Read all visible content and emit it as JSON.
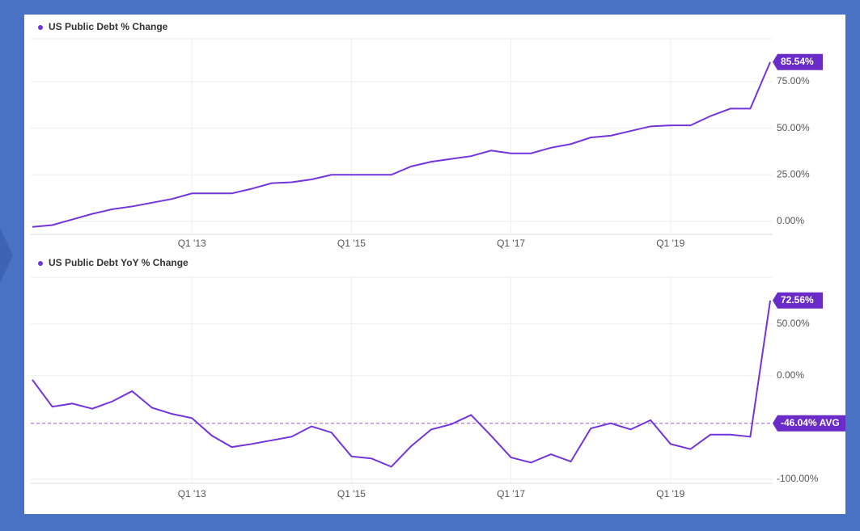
{
  "chart_data": [
    {
      "type": "line",
      "categories": [
        null,
        null,
        null,
        null,
        null,
        null,
        null,
        null,
        "Q1 '13",
        null,
        null,
        null,
        null,
        null,
        null,
        null,
        "Q1 '15",
        null,
        null,
        null,
        null,
        null,
        null,
        null,
        "Q1 '17",
        null,
        null,
        null,
        null,
        null,
        null,
        null,
        "Q1 '19",
        null,
        null,
        null,
        null,
        null
      ],
      "series": [
        {
          "name": "US Public Debt % Change",
          "color": "#7434dc",
          "values": [
            -3,
            -2,
            1,
            4,
            6.5,
            8,
            10,
            12,
            15,
            15,
            15,
            17.5,
            20.5,
            21,
            22.5,
            25,
            25,
            25,
            25,
            29.5,
            32,
            33.5,
            35,
            38,
            36.5,
            36.5,
            39.5,
            41.5,
            45,
            46,
            48.5,
            51,
            51.5,
            51.5,
            56.5,
            60.5,
            60.5,
            85.54
          ],
          "value_labels": [
            null,
            null,
            null,
            null,
            null,
            null,
            null,
            null,
            null,
            null,
            null,
            null,
            null,
            null,
            null,
            null,
            null,
            null,
            null,
            null,
            null,
            null,
            null,
            null,
            null,
            null,
            null,
            null,
            null,
            null,
            null,
            null,
            null,
            null,
            null,
            null,
            null,
            "85.54%"
          ]
        }
      ],
      "ylim": [
        -7,
        98
      ],
      "yticks": [
        {
          "value": 0,
          "label": "0.00%"
        },
        {
          "value": 25,
          "label": "25.00%"
        },
        {
          "value": 50,
          "label": "50.00%"
        },
        {
          "value": 75,
          "label": "75.00%"
        }
      ],
      "grid": true
    },
    {
      "type": "line",
      "categories": [
        null,
        null,
        null,
        null,
        null,
        null,
        null,
        null,
        "Q1 '13",
        null,
        null,
        null,
        null,
        null,
        null,
        null,
        "Q1 '15",
        null,
        null,
        null,
        null,
        null,
        null,
        null,
        "Q1 '17",
        null,
        null,
        null,
        null,
        null,
        null,
        null,
        "Q1 '19",
        null,
        null,
        null,
        null,
        null
      ],
      "series": [
        {
          "name": "US Public Debt YoY % Change",
          "color": "#7434dc",
          "values": [
            -4,
            -30,
            -27,
            -32,
            -25,
            -15,
            -31,
            -37,
            -41,
            -58,
            -69,
            -66,
            -62.5,
            -59,
            -49,
            -55,
            -78,
            -80,
            -88,
            -68,
            -52,
            -47,
            -38,
            -58,
            -79,
            -84,
            -76,
            -83,
            -51,
            -46,
            -52,
            -43,
            -66,
            -71,
            -57,
            -57,
            -59,
            72.56
          ],
          "value_labels": [
            null,
            null,
            null,
            null,
            null,
            null,
            null,
            null,
            null,
            null,
            null,
            null,
            null,
            null,
            null,
            null,
            null,
            null,
            null,
            null,
            null,
            null,
            null,
            null,
            null,
            null,
            null,
            null,
            null,
            null,
            null,
            null,
            null,
            null,
            null,
            null,
            null,
            "72.56%"
          ]
        }
      ],
      "average": -46.04,
      "average_label": "-46.04% AVG",
      "ylim": [
        -104,
        95
      ],
      "yticks": [
        {
          "value": -100,
          "label": "-100.00%"
        },
        {
          "value": 0,
          "label": "0.00%"
        },
        {
          "value": 50,
          "label": "50.00%"
        }
      ],
      "grid": true
    }
  ]
}
